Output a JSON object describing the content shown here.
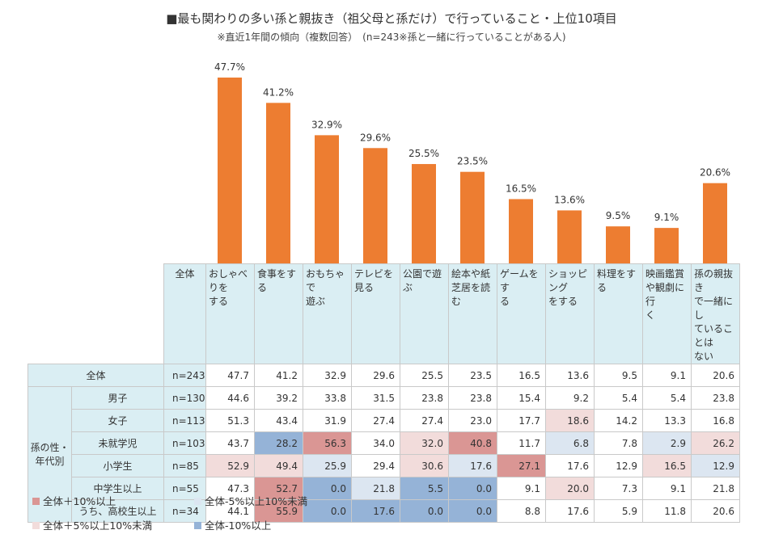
{
  "title": "■最も関わりの多い孫と親抜き（祖父母と孫だけ）で行っていること・上位10項目",
  "subtitle": "※直近1年間の傾向（複数回答）　(n=243※孫と一緒に行っていることがある人)",
  "colors": {
    "bar": "#ed7d31",
    "header_bg": "#daeef3",
    "plus10": "#da9694",
    "plus5": "#f2dcdb",
    "minus5": "#dce6f1",
    "minus10": "#95b3d7"
  },
  "chart_data": {
    "type": "bar",
    "categories": [
      "おしゃべりをする",
      "食事をする",
      "おもちゃで遊ぶ",
      "テレビを見る",
      "公園で遊ぶ",
      "絵本や紙芝居を読む",
      "ゲームをする",
      "ショッピングをする",
      "料理をする",
      "映画鑑賞や観劇に行く",
      "孫の親抜きで一緒にしていることはない"
    ],
    "values": [
      47.7,
      41.2,
      32.9,
      29.6,
      25.5,
      23.5,
      16.5,
      13.6,
      9.5,
      9.1,
      20.6
    ],
    "value_labels": [
      "47.7%",
      "41.2%",
      "32.9%",
      "29.6%",
      "25.5%",
      "23.5%",
      "16.5%",
      "13.6%",
      "9.5%",
      "9.1%",
      "20.6%"
    ],
    "ylim": [
      0,
      50
    ]
  },
  "table": {
    "col_header_overall": "全体",
    "col_headers": [
      "おしゃべりを\nする",
      "食事をする",
      "おもちゃで\n遊ぶ",
      "テレビを見る",
      "公園で遊ぶ",
      "絵本や紙\n芝居を読む",
      "ゲームをす\nる",
      "ショッピング\nをする",
      "料理をする",
      "映画鑑賞\nや観劇に行\nく",
      "孫の親抜き\nで一緒にし\nていることは\nない"
    ],
    "group_label": "孫の性・\n年代別",
    "rows": [
      {
        "label": "全体",
        "n": "n=243",
        "values": [
          "47.7",
          "41.2",
          "32.9",
          "29.6",
          "25.5",
          "23.5",
          "16.5",
          "13.6",
          "9.5",
          "9.1",
          "20.6"
        ],
        "highlights": [
          "",
          "",
          "",
          "",
          "",
          "",
          "",
          "",
          "",
          "",
          ""
        ]
      },
      {
        "label": "男子",
        "n": "n=130",
        "values": [
          "44.6",
          "39.2",
          "33.8",
          "31.5",
          "23.8",
          "23.8",
          "15.4",
          "9.2",
          "5.4",
          "5.4",
          "23.8"
        ],
        "highlights": [
          "",
          "",
          "",
          "",
          "",
          "",
          "",
          "",
          "",
          "",
          ""
        ]
      },
      {
        "label": "女子",
        "n": "n=113",
        "values": [
          "51.3",
          "43.4",
          "31.9",
          "27.4",
          "27.4",
          "23.0",
          "17.7",
          "18.6",
          "14.2",
          "13.3",
          "16.8"
        ],
        "highlights": [
          "",
          "",
          "",
          "",
          "",
          "",
          "",
          "plus5",
          "",
          "",
          ""
        ]
      },
      {
        "label": "未就学児",
        "n": "n=103",
        "values": [
          "43.7",
          "28.2",
          "56.3",
          "34.0",
          "32.0",
          "40.8",
          "11.7",
          "6.8",
          "7.8",
          "2.9",
          "26.2"
        ],
        "highlights": [
          "",
          "minus10",
          "plus10",
          "",
          "plus5",
          "plus10",
          "",
          "minus5",
          "",
          "minus5",
          "plus5"
        ]
      },
      {
        "label": "小学生",
        "n": "n=85",
        "values": [
          "52.9",
          "49.4",
          "25.9",
          "29.4",
          "30.6",
          "17.6",
          "27.1",
          "17.6",
          "12.9",
          "16.5",
          "12.9"
        ],
        "highlights": [
          "plus5",
          "plus5",
          "minus5",
          "",
          "plus5",
          "minus5",
          "plus10",
          "",
          "",
          "plus5",
          "minus5"
        ]
      },
      {
        "label": "中学生以上",
        "n": "n=55",
        "values": [
          "47.3",
          "52.7",
          "0.0",
          "21.8",
          "5.5",
          "0.0",
          "9.1",
          "20.0",
          "7.3",
          "9.1",
          "21.8"
        ],
        "highlights": [
          "",
          "plus10",
          "minus10",
          "minus5",
          "minus10",
          "minus10",
          "",
          "plus5",
          "",
          "",
          ""
        ]
      },
      {
        "label": "うち、高校生以上",
        "n": "n=34",
        "values": [
          "44.1",
          "55.9",
          "0.0",
          "17.6",
          "0.0",
          "0.0",
          "8.8",
          "17.6",
          "5.9",
          "11.8",
          "20.6"
        ],
        "highlights": [
          "",
          "plus10",
          "minus10",
          "minus10",
          "minus10",
          "minus10",
          "",
          "",
          "",
          "",
          ""
        ]
      }
    ]
  },
  "legend": {
    "plus10": "全体＋10%以上",
    "minus5": "全体-5%以上10%未満",
    "plus5": "全体＋5%以上10%未満",
    "minus10": "全体-10%以上"
  }
}
